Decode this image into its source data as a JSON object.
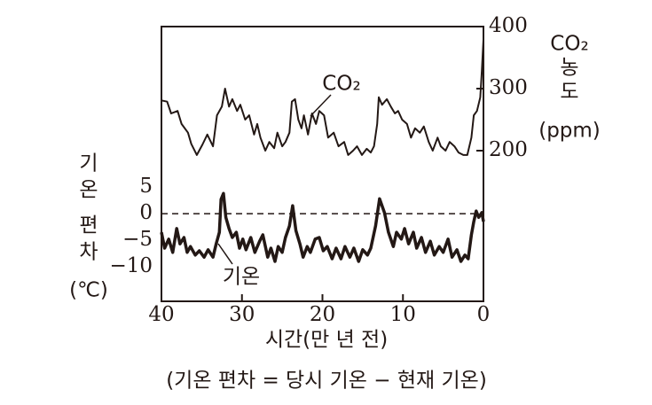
{
  "chart_data": {
    "type": "line",
    "xlabel": "시간(만 년 전)",
    "caption": "(기온 편차 = 당시 기온 − 현재 기온)",
    "ylabel": [
      "기",
      "온",
      "편",
      "차",
      "(℃)"
    ],
    "y2label": [
      "CO₂",
      "농",
      "도",
      "(ppm)"
    ],
    "xlim": [
      40,
      0
    ],
    "xticks": [
      40,
      30,
      20,
      10,
      0
    ],
    "ylim": [
      -16.5,
      35.2
    ],
    "yticks": [
      5,
      0,
      {
        "value": -5,
        "label": "−5"
      },
      {
        "value": -10,
        "label": "−10"
      }
    ],
    "y2lim": [
      -42.9,
      400
    ],
    "y2ticks": [
      400,
      300,
      200
    ],
    "hline": 0,
    "annotations": [
      "CO₂",
      "기온"
    ],
    "series": [
      {
        "name": "CO₂",
        "axis": "y2",
        "color": "#231815",
        "x": [
          40.0,
          39.3,
          38.8,
          38.0,
          37.5,
          36.7,
          36.3,
          35.6,
          34.9,
          34.3,
          33.6,
          33.1,
          32.5,
          32.1,
          31.6,
          31.2,
          30.6,
          30.2,
          29.6,
          29.1,
          28.5,
          28.1,
          27.7,
          27.1,
          26.6,
          26.0,
          25.6,
          25.0,
          24.6,
          24.1,
          23.8,
          23.4,
          23.0,
          22.6,
          22.3,
          21.8,
          21.3,
          20.8,
          20.4,
          19.8,
          19.3,
          18.6,
          18.0,
          17.3,
          16.8,
          16.2,
          15.7,
          15.1,
          14.5,
          14.0,
          13.6,
          13.2,
          13.0,
          12.6,
          12.0,
          11.5,
          11.0,
          10.6,
          10.1,
          9.5,
          9.0,
          8.5,
          7.9,
          7.4,
          6.8,
          6.3,
          5.7,
          5.3,
          4.7,
          4.2,
          3.6,
          3.1,
          2.5,
          2.0,
          1.5,
          1.2,
          0.8,
          0.4,
          0.2,
          0
        ],
        "values": [
          281,
          279,
          260,
          264,
          243,
          229,
          211,
          193,
          210,
          226,
          207,
          257,
          271,
          300,
          271,
          283,
          264,
          274,
          250,
          257,
          226,
          243,
          221,
          200,
          214,
          204,
          229,
          207,
          214,
          229,
          279,
          283,
          250,
          236,
          257,
          226,
          260,
          243,
          264,
          257,
          221,
          229,
          207,
          214,
          193,
          200,
          207,
          193,
          203,
          197,
          207,
          243,
          286,
          274,
          283,
          271,
          260,
          264,
          250,
          243,
          221,
          236,
          229,
          239,
          214,
          200,
          221,
          207,
          200,
          214,
          207,
          197,
          193,
          193,
          221,
          257,
          264,
          286,
          329,
          379
        ]
      },
      {
        "name": "기온",
        "axis": "y",
        "color": "#231815",
        "x": [
          40.0,
          39.6,
          39.1,
          38.6,
          38.1,
          37.7,
          37.2,
          36.8,
          36.4,
          35.8,
          35.3,
          34.7,
          34.2,
          33.6,
          33.2,
          32.8,
          32.6,
          32.3,
          32.0,
          31.6,
          31.2,
          30.7,
          30.3,
          29.9,
          29.5,
          28.9,
          28.4,
          27.8,
          27.4,
          26.8,
          26.4,
          25.9,
          25.5,
          25.0,
          24.6,
          24.1,
          23.7,
          23.3,
          22.8,
          22.4,
          21.9,
          21.5,
          20.9,
          20.4,
          19.9,
          19.4,
          18.8,
          18.3,
          17.7,
          17.2,
          16.6,
          16.1,
          15.5,
          15.0,
          14.4,
          14.0,
          13.4,
          12.9,
          12.3,
          11.8,
          11.2,
          10.8,
          10.2,
          9.8,
          9.3,
          8.7,
          8.3,
          7.7,
          7.2,
          6.6,
          6.1,
          5.5,
          5.0,
          4.4,
          3.9,
          3.3,
          2.8,
          2.3,
          1.9,
          1.5,
          1.2,
          0.9,
          0.6,
          0.2,
          0
        ],
        "values": [
          -3.5,
          -6.5,
          -4.8,
          -7.3,
          -2.8,
          -5.7,
          -4.5,
          -7.3,
          -6.2,
          -7.8,
          -7.0,
          -8.2,
          -6.8,
          -8.2,
          -5.7,
          -3.5,
          2.7,
          3.8,
          -0.7,
          -2.8,
          -4.5,
          -3.5,
          -6.5,
          -4.8,
          -6.8,
          -4.5,
          -7.3,
          -5.2,
          -4.0,
          -8.2,
          -6.5,
          -9.0,
          -6.2,
          -7.3,
          -4.5,
          -2.3,
          1.5,
          -3.2,
          -5.7,
          -8.2,
          -6.2,
          -7.3,
          -4.8,
          -4.5,
          -7.0,
          -6.2,
          -8.5,
          -6.5,
          -8.5,
          -6.2,
          -8.2,
          -6.5,
          -9.0,
          -6.8,
          -7.8,
          -6.5,
          -2.3,
          2.8,
          0.2,
          -3.5,
          -6.2,
          -3.5,
          -4.8,
          -2.8,
          -5.7,
          -3.5,
          -6.5,
          -4.5,
          -7.3,
          -5.2,
          -7.8,
          -6.2,
          -7.3,
          -4.8,
          -8.2,
          -6.8,
          -9.0,
          -7.8,
          -8.5,
          -4.0,
          -1.5,
          0.5,
          -0.7,
          0.2,
          -1.5
        ]
      }
    ]
  }
}
